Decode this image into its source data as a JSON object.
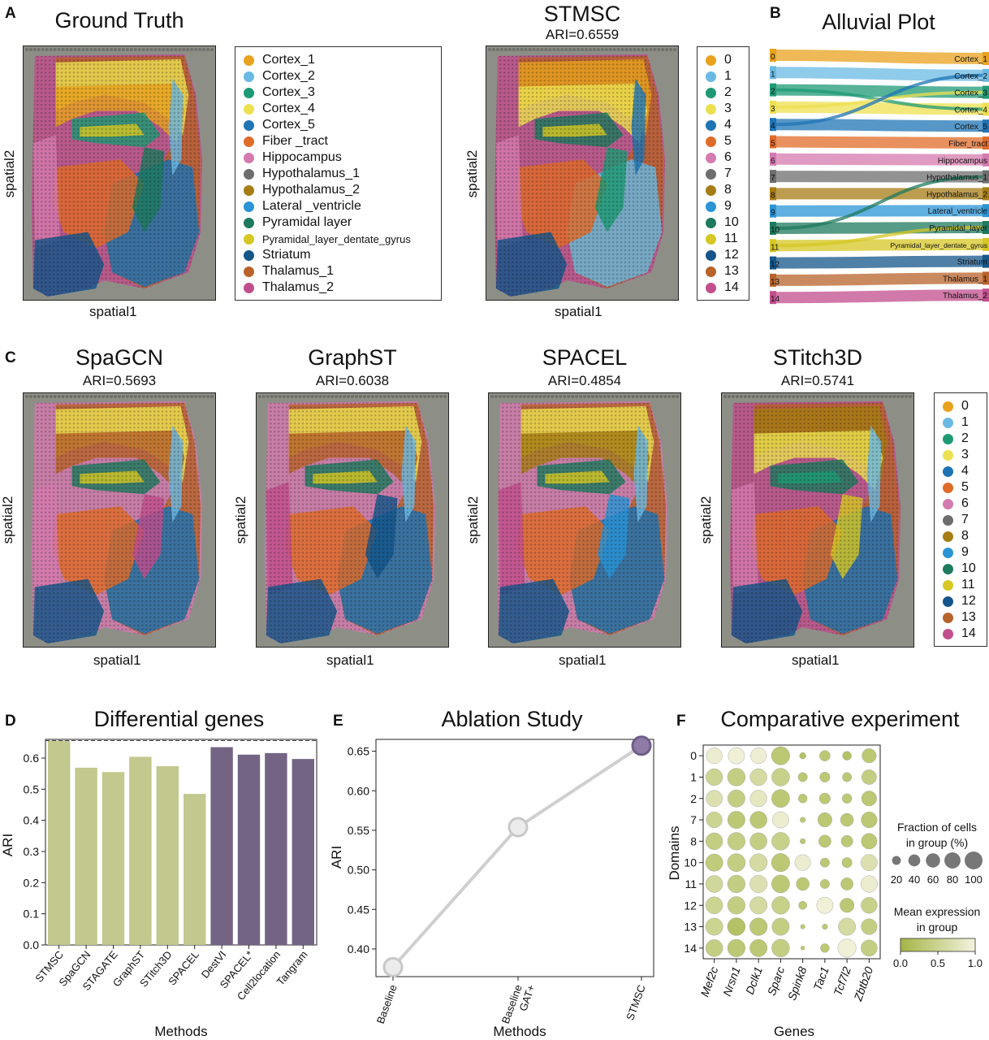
{
  "panels": {
    "A": "A",
    "B": "B",
    "C": "C",
    "D": "D",
    "E": "E",
    "F": "F"
  },
  "palette": [
    "#e8a21e",
    "#6ab9e3",
    "#1d9a74",
    "#ede050",
    "#1f74b5",
    "#e06b28",
    "#d57aae",
    "#6d6d6d",
    "#a67c14",
    "#2a94d6",
    "#1d7a5e",
    "#d6c723",
    "#14558a",
    "#b8632a",
    "#c24e8c"
  ],
  "ground_truth": {
    "title": "Ground Truth",
    "xlabel": "spatial1",
    "ylabel": "spatial2",
    "legend": [
      "Cortex_1",
      "Cortex_2",
      "Cortex_3",
      "Cortex_4",
      "Cortex_5",
      "Fiber _tract",
      "Hippocampus",
      "Hypothalamus_1",
      "Hypothalamus_2",
      "Lateral _ventricle",
      "Pyramidal layer",
      "Pyramidal_layer_dentate_gyrus",
      "Striatum",
      "Thalamus_1",
      "Thalamus_2"
    ]
  },
  "stmsc": {
    "title": "STMSC",
    "ari": "ARI=0.6559",
    "xlabel": "spatial1",
    "ylabel": "spatial2"
  },
  "cluster_legend": [
    "0",
    "1",
    "2",
    "3",
    "4",
    "5",
    "6",
    "7",
    "8",
    "9",
    "10",
    "11",
    "12",
    "13",
    "14"
  ],
  "alluvial": {
    "title": "Alluvial Plot",
    "left": [
      "0",
      "1",
      "2",
      "3",
      "4",
      "5",
      "6",
      "7",
      "8",
      "9",
      "10",
      "11",
      "12",
      "13",
      "14"
    ],
    "right": [
      "Cortex_1",
      "Cortex_2",
      "Cortex_3",
      "Cortex_4",
      "Cortex_5",
      "Fiber_tract",
      "Hippocampus",
      "Hypothalamus_1",
      "Hypothalamus_2",
      "Lateral_ventricle",
      "Pyramidal_layer",
      "Pyramidal_layer_dentate_gyrus",
      "Striatum",
      "Thalamus_1",
      "Thalamus_2"
    ]
  },
  "methods_c": [
    {
      "title": "SpaGCN",
      "ari": "ARI=0.5693"
    },
    {
      "title": "GraphST",
      "ari": "ARI=0.6038"
    },
    {
      "title": "SPACEL",
      "ari": "ARI=0.4854"
    },
    {
      "title": "STitch3D",
      "ari": "ARI=0.5741"
    }
  ],
  "spatial1": "spatial1",
  "spatial2": "spatial2",
  "chart_data": [
    {
      "type": "bar",
      "title": "Differential genes",
      "xlabel": "Methods",
      "ylabel": "ARI",
      "categories": [
        "STMSC",
        "SpaGCN",
        "STAGATE",
        "GraphST",
        "STitch3D",
        "SPACEL",
        "DestVI",
        "SPACEL*",
        "Cell2location",
        "Tangram"
      ],
      "values": [
        0.656,
        0.569,
        0.555,
        0.604,
        0.574,
        0.485,
        0.635,
        0.611,
        0.616,
        0.597
      ],
      "group": [
        "a",
        "a",
        "a",
        "a",
        "a",
        "a",
        "b",
        "b",
        "b",
        "b"
      ],
      "colors": {
        "a": "#c2c88e",
        "b": "#736484"
      },
      "reference_line": 0.656,
      "ylim": [
        0,
        0.66
      ],
      "yticks": [
        "0.0",
        "0.1",
        "0.2",
        "0.3",
        "0.4",
        "0.5",
        "0.6"
      ]
    },
    {
      "type": "line",
      "title": "Ablation Study",
      "xlabel": "Methods",
      "ylabel": "ARI",
      "categories": [
        "Baseline",
        "Baseline\nGAT+",
        "STMSC"
      ],
      "values": [
        0.377,
        0.554,
        0.657
      ],
      "point_colors": [
        "#d9d9d9",
        "#d9d9d9",
        "#8e7ba6"
      ],
      "ylim": [
        0.365,
        0.665
      ],
      "yticks": [
        "0.40",
        "0.45",
        "0.50",
        "0.55",
        "0.60",
        "0.65"
      ]
    },
    {
      "type": "dotplot",
      "title": "Comparative experiment",
      "xlabel": "Genes",
      "ylabel": "Domains",
      "genes": [
        "Mef2c",
        "Nrsn1",
        "Dclk1",
        "Sparc",
        "Spink8",
        "Tac1",
        "Tcf7l2",
        "Zbtb20"
      ],
      "domains": [
        "0",
        "1",
        "2",
        "7",
        "8",
        "10",
        "11",
        "12",
        "13",
        "14"
      ],
      "fraction": [
        [
          70,
          75,
          70,
          95,
          8,
          28,
          18,
          55
        ],
        [
          80,
          90,
          80,
          90,
          20,
          25,
          20,
          60
        ],
        [
          75,
          85,
          78,
          92,
          18,
          30,
          22,
          62
        ],
        [
          70,
          85,
          82,
          75,
          5,
          55,
          45,
          70
        ],
        [
          80,
          88,
          82,
          90,
          5,
          40,
          35,
          68
        ],
        [
          85,
          92,
          88,
          95,
          70,
          20,
          25,
          75
        ],
        [
          82,
          88,
          85,
          92,
          45,
          20,
          40,
          78
        ],
        [
          82,
          88,
          85,
          90,
          15,
          75,
          55,
          72
        ],
        [
          85,
          90,
          88,
          85,
          3,
          5,
          85,
          70
        ],
        [
          82,
          88,
          85,
          90,
          2,
          18,
          95,
          74
        ]
      ],
      "expression": [
        [
          0.9,
          0.95,
          0.92,
          0.3,
          0.2,
          0.3,
          0.2,
          0.3
        ],
        [
          0.5,
          0.4,
          0.6,
          0.45,
          0.3,
          0.3,
          0.3,
          0.4
        ],
        [
          0.7,
          0.4,
          0.8,
          0.3,
          0.3,
          0.3,
          0.3,
          0.3
        ],
        [
          0.5,
          0.3,
          0.3,
          0.9,
          0.3,
          0.3,
          0.3,
          0.3
        ],
        [
          0.4,
          0.4,
          0.4,
          0.45,
          0.3,
          0.3,
          0.3,
          0.3
        ],
        [
          0.35,
          0.4,
          0.6,
          0.3,
          0.9,
          0.3,
          0.3,
          0.7
        ],
        [
          0.55,
          0.4,
          0.7,
          0.3,
          0.3,
          0.3,
          0.3,
          0.9
        ],
        [
          0.5,
          0.4,
          0.6,
          0.45,
          0.3,
          0.95,
          0.3,
          0.45
        ],
        [
          0.5,
          0.2,
          0.3,
          0.4,
          0.3,
          0.3,
          0.6,
          0.4
        ],
        [
          0.4,
          0.3,
          0.3,
          0.4,
          0.3,
          0.3,
          0.95,
          0.4
        ]
      ],
      "size_legend": {
        "title": "Fraction of cells\nin group (%)",
        "ticks": [
          "20",
          "40",
          "60",
          "80",
          "100"
        ]
      },
      "color_legend": {
        "title": "Mean expression\nin group",
        "ticks": [
          "0.0",
          "0.5",
          "1.0"
        ],
        "low": "#a4b545",
        "high": "#f4f3df"
      }
    }
  ]
}
